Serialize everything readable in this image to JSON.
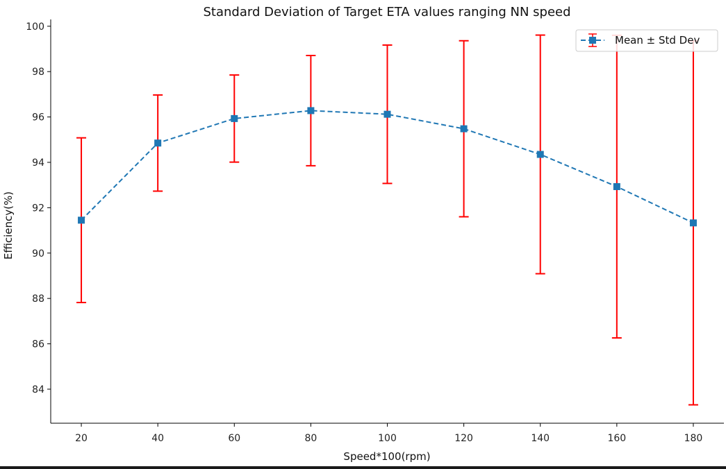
{
  "chart_data": {
    "type": "line",
    "title": "Standard Deviation of Target ETA values ranging NN speed",
    "xlabel": "Speed*100(rpm)",
    "ylabel": "Efficiency(%)",
    "x": [
      20,
      40,
      60,
      80,
      100,
      120,
      140,
      160,
      180
    ],
    "xlim": [
      12,
      188
    ],
    "ylim": [
      82.5,
      100.3
    ],
    "xticks": [
      20,
      40,
      60,
      80,
      100,
      120,
      140,
      160,
      180
    ],
    "yticks": [
      84,
      86,
      88,
      90,
      92,
      94,
      96,
      98,
      100
    ],
    "series": [
      {
        "name": "Mean ± Std Dev",
        "mean": [
          91.45,
          94.85,
          95.93,
          96.28,
          96.12,
          95.48,
          94.35,
          92.93,
          91.33
        ],
        "std": [
          3.63,
          2.12,
          1.92,
          2.43,
          3.05,
          3.88,
          5.26,
          6.67,
          8.02
        ],
        "line_color": "#1f77b4",
        "error_color": "#ff0000",
        "line_style": "dashed",
        "marker": "square"
      }
    ],
    "legend_position": "top-right",
    "grid": false
  }
}
